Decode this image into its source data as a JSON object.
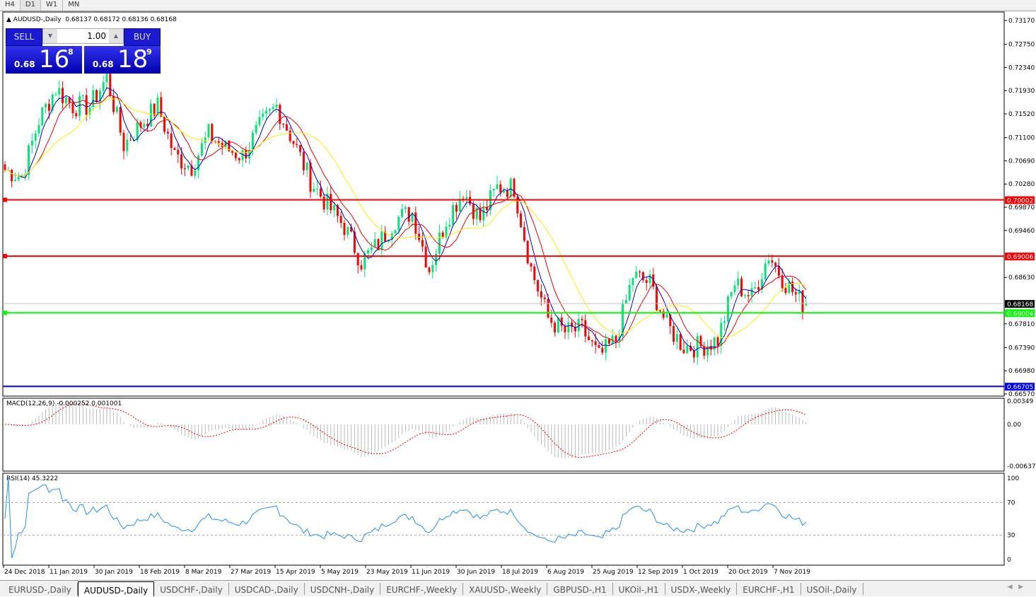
{
  "timeframes": [
    "H4",
    "D1",
    "W1",
    "MN"
  ],
  "active_timeframe": "D1",
  "header": {
    "symbol": "AUDUSD-,Daily",
    "ohlc": "0.68137 0.68172 0.68136 0.68168"
  },
  "trade": {
    "sell_label": "SELL",
    "buy_label": "BUY",
    "lot": "1.00",
    "sell": {
      "small": "0.68",
      "big": "16",
      "pip": "8"
    },
    "buy": {
      "small": "0.68",
      "big": "18",
      "pip": "9"
    }
  },
  "indicators": {
    "macd_label": "MACD(12,26,9) -0.000252 0.001001",
    "rsi_label": "RSI(14) 45.3222"
  },
  "tabs": [
    "EURUSD-,Daily",
    "AUDUSD-,Daily",
    "USDCHF-,Daily",
    "USDCAD-,Daily",
    "USDCNH-,Daily",
    "EURCHF-,Weekly",
    "XAUUSD-,Weekly",
    "GBPUSD-,H1",
    "UKOil-,H1",
    "USDX-,Weekly",
    "EURCHF-,H1",
    "USOil-,Daily"
  ],
  "active_tab": "AUDUSD-,Daily",
  "colors": {
    "bull": "#00e676",
    "bear": "#ff0000",
    "ma_fast": "#0000cc",
    "ma_mid": "#ee0000",
    "ma_slow": "#ffee00",
    "macd_signal": "#ff0000",
    "rsi": "#1e90ff"
  },
  "chart_data": {
    "type": "candlestick",
    "price_ticks": [
      "0.73170",
      "0.72750",
      "0.72340",
      "0.71930",
      "0.71520",
      "0.71100",
      "0.70690",
      "0.70280",
      "0.69870",
      "0.69460",
      "0.68630",
      "0.67810",
      "0.67390",
      "0.66980",
      "0.66570"
    ],
    "ylim": [
      0.6657,
      0.7317
    ],
    "date_ticks": [
      "24 Dec 2018",
      "11 Jan 2019",
      "30 Jan 2019",
      "18 Feb 2019",
      "8 Mar 2019",
      "27 Mar 2019",
      "15 Apr 2019",
      "5 May 2019",
      "23 May 2019",
      "11 Jun 2019",
      "30 Jun 2019",
      "18 Jul 2019",
      "6 Aug 2019",
      "25 Aug 2019",
      "12 Sep 2019",
      "1 Oct 2019",
      "20 Oct 2019",
      "7 Nov 2019"
    ],
    "weekly_closes": [
      0.7053,
      0.7041,
      0.7141,
      0.7197,
      0.7166,
      0.7166,
      0.7216,
      0.7097,
      0.7134,
      0.7166,
      0.7078,
      0.7059,
      0.7116,
      0.7091,
      0.7078,
      0.7128,
      0.7166,
      0.7103,
      0.7034,
      0.6991,
      0.6953,
      0.6891,
      0.6922,
      0.6966,
      0.6978,
      0.6878,
      0.6966,
      0.7016,
      0.6966,
      0.7022,
      0.7022,
      0.6878,
      0.6791,
      0.6766,
      0.6772,
      0.6722,
      0.6753,
      0.6866,
      0.6853,
      0.6778,
      0.6741,
      0.6741,
      0.6753,
      0.6853,
      0.6828,
      0.6903,
      0.6853,
      0.68168
    ],
    "levels": [
      {
        "price": "0.70002",
        "color": "#ff0000"
      },
      {
        "price": "0.69006",
        "color": "#ff0000"
      },
      {
        "price": "0.68168",
        "color": "#000000"
      },
      {
        "price": "0.68004",
        "color": "#00ff00"
      },
      {
        "price": "0.66705",
        "color": "#0000ff"
      }
    ],
    "macd_ticks": [
      "0.00349",
      "0.00",
      "-0.00637"
    ],
    "rsi_ticks": [
      "100",
      "70",
      "30",
      "0"
    ]
  }
}
